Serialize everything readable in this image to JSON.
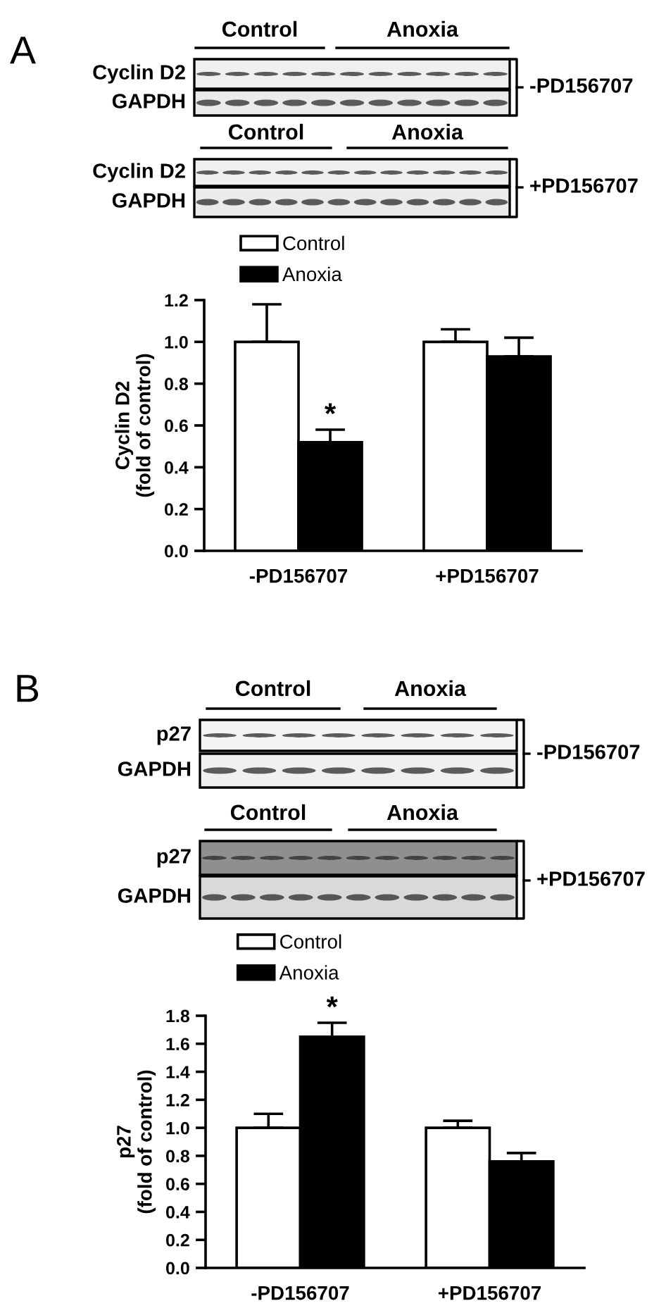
{
  "chart_data": [
    {
      "type": "bar",
      "title": "A",
      "categories": [
        "-PD156707",
        "+PD156707"
      ],
      "series": [
        {
          "name": "Control",
          "color": "#ffffff",
          "values": [
            1.0,
            1.0
          ],
          "errors": [
            [
              1.0,
              1.18
            ],
            [
              1.0,
              1.06
            ]
          ]
        },
        {
          "name": "Anoxia",
          "color": "#000000",
          "values": [
            0.52,
            0.93
          ],
          "errors": [
            [
              0.52,
              0.58
            ],
            [
              0.93,
              1.02
            ]
          ]
        }
      ],
      "ylabel": "Cyclin D2\n(fold of control)",
      "ylim": [
        0,
        1.2
      ],
      "yticks": [
        {
          "value": 0,
          "label": "0.0"
        },
        {
          "value": 0.2,
          "label": "0.2"
        },
        {
          "value": 0.4,
          "label": "0.4"
        },
        {
          "value": 0.6,
          "label": "0.6"
        },
        {
          "value": 0.8,
          "label": "0.8"
        },
        {
          "value": 1.0,
          "label": "1.0"
        },
        {
          "value": 1.2,
          "label": "1.2"
        }
      ],
      "legend": "top left",
      "annotations": [
        "Control",
        "Anoxia",
        "Cyclin D2",
        "GAPDH",
        "-PD156707",
        "Control",
        "Anoxia",
        "Cyclin D2",
        "GAPDH",
        "+PD156707",
        {
          "text": "*",
          "x": "-PD156707",
          "y": 0.52
        }
      ]
    },
    {
      "type": "bar",
      "title": "B",
      "categories": [
        "-PD156707",
        "+PD156707"
      ],
      "series": [
        {
          "name": "Control",
          "color": "#ffffff",
          "values": [
            1.0,
            1.0
          ],
          "errors": [
            [
              1.0,
              1.1
            ],
            [
              1.0,
              1.05
            ]
          ]
        },
        {
          "name": "Anoxia",
          "color": "#000000",
          "values": [
            1.65,
            0.76
          ],
          "errors": [
            [
              1.65,
              1.75
            ],
            [
              0.76,
              0.82
            ]
          ]
        }
      ],
      "ylabel": "p27\n(fold of control)",
      "ylim": [
        0,
        1.8
      ],
      "yticks": [
        {
          "value": 0,
          "label": "0.0"
        },
        {
          "value": 0.2,
          "label": "0.2"
        },
        {
          "value": 0.4,
          "label": "0.4"
        },
        {
          "value": 0.6,
          "label": "0.6"
        },
        {
          "value": 0.8,
          "label": "0.8"
        },
        {
          "value": 1.0,
          "label": "1.0"
        },
        {
          "value": 1.2,
          "label": "1.2"
        },
        {
          "value": 1.4,
          "label": "1.4"
        },
        {
          "value": 1.6,
          "label": "1.6"
        },
        {
          "value": 1.8,
          "label": "1.8"
        }
      ],
      "legend": "top left",
      "annotations": [
        "Control",
        "Anoxia",
        "p27",
        "GAPDH",
        "-PD156707",
        "Control",
        "Anoxia",
        "p27",
        "GAPDH",
        "+PD156707",
        {
          "text": "*",
          "x": "-PD156707",
          "y": 1.65
        }
      ]
    }
  ]
}
